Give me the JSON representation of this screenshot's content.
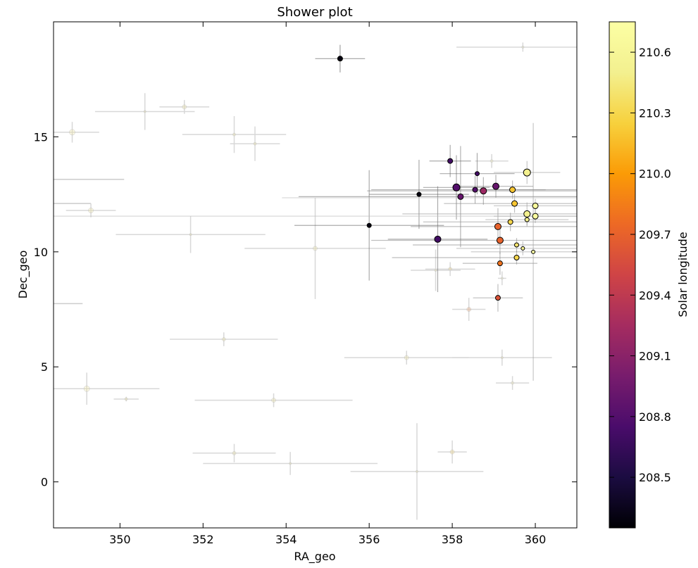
{
  "chart_data": {
    "type": "scatter",
    "title": "Shower plot",
    "xlabel": "RA_geo",
    "ylabel": "Dec_geo",
    "xlim": [
      348.4,
      361.0
    ],
    "ylim": [
      -2.0,
      20.0
    ],
    "x_ticks": [
      350,
      352,
      354,
      356,
      358,
      360
    ],
    "y_ticks": [
      0,
      5,
      10,
      15
    ],
    "x_tick_labels": [
      "350",
      "352",
      "354",
      "356",
      "358",
      "360"
    ],
    "y_tick_labels": [
      "0",
      "5",
      "10",
      "15"
    ],
    "grid": false,
    "marker_size_encodes": "point size",
    "colorbar": {
      "label": "Solar longitude",
      "colormap": "inferno",
      "range": [
        208.25,
        210.75
      ],
      "ticks": [
        208.5,
        208.8,
        209.1,
        209.4,
        209.7,
        210.0,
        210.3,
        210.6
      ],
      "tick_labels": [
        "208.5",
        "208.8",
        "209.1",
        "209.4",
        "209.7",
        "210.0",
        "210.3",
        "210.6"
      ]
    },
    "points": [
      {
        "x": 355.3,
        "y": 18.4,
        "c": 208.3,
        "s": 3.5
      },
      {
        "x": 357.2,
        "y": 12.5,
        "c": 208.3,
        "s": 3
      },
      {
        "x": 356.0,
        "y": 11.15,
        "c": 208.3,
        "s": 3
      },
      {
        "x": 357.95,
        "y": 13.95,
        "c": 208.7,
        "s": 3.5
      },
      {
        "x": 358.6,
        "y": 13.4,
        "c": 208.7,
        "s": 3
      },
      {
        "x": 357.65,
        "y": 10.55,
        "c": 208.7,
        "s": 4.5
      },
      {
        "x": 358.1,
        "y": 12.8,
        "c": 208.8,
        "s": 5
      },
      {
        "x": 358.55,
        "y": 12.7,
        "c": 208.8,
        "s": 3.5
      },
      {
        "x": 358.2,
        "y": 12.4,
        "c": 208.9,
        "s": 4
      },
      {
        "x": 359.05,
        "y": 12.85,
        "c": 208.9,
        "s": 4.5
      },
      {
        "x": 358.75,
        "y": 12.65,
        "c": 209.2,
        "s": 4.5
      },
      {
        "x": 359.1,
        "y": 8.0,
        "c": 209.6,
        "s": 3.5
      },
      {
        "x": 359.1,
        "y": 11.1,
        "c": 209.7,
        "s": 4.5
      },
      {
        "x": 359.15,
        "y": 10.5,
        "c": 209.7,
        "s": 4.5
      },
      {
        "x": 359.15,
        "y": 9.5,
        "c": 209.8,
        "s": 3.5
      },
      {
        "x": 359.45,
        "y": 12.7,
        "c": 210.2,
        "s": 4
      },
      {
        "x": 359.5,
        "y": 12.1,
        "c": 210.2,
        "s": 4
      },
      {
        "x": 359.4,
        "y": 11.3,
        "c": 210.3,
        "s": 3.5
      },
      {
        "x": 359.55,
        "y": 9.75,
        "c": 210.3,
        "s": 3.5
      },
      {
        "x": 359.55,
        "y": 10.3,
        "c": 210.4,
        "s": 3
      },
      {
        "x": 359.8,
        "y": 13.45,
        "c": 210.5,
        "s": 5
      },
      {
        "x": 359.8,
        "y": 11.65,
        "c": 210.5,
        "s": 4.5
      },
      {
        "x": 359.8,
        "y": 11.4,
        "c": 210.5,
        "s": 3
      },
      {
        "x": 359.7,
        "y": 10.15,
        "c": 210.5,
        "s": 2.5
      },
      {
        "x": 360.0,
        "y": 12.0,
        "c": 210.65,
        "s": 4
      },
      {
        "x": 360.0,
        "y": 11.55,
        "c": 210.7,
        "s": 4
      },
      {
        "x": 359.95,
        "y": 10.0,
        "c": 210.7,
        "s": 2.5
      }
    ],
    "error_bars": [
      {
        "x": 355.3,
        "y": 18.4,
        "xerr": 0.6,
        "yerr": 0.6,
        "shade": "#555"
      },
      {
        "x": 357.2,
        "y": 12.5,
        "xerr": 1.2,
        "yerr": 1.5,
        "shade": "#666"
      },
      {
        "x": 356.0,
        "y": 11.15,
        "xerr": 1.8,
        "yerr": 2.4,
        "shade": "#666"
      },
      {
        "x": 357.95,
        "y": 13.95,
        "xerr": 0.5,
        "yerr": 0.7,
        "shade": "#666"
      },
      {
        "x": 358.6,
        "y": 13.4,
        "xerr": 0.9,
        "yerr": 0.9,
        "shade": "#666"
      },
      {
        "x": 357.65,
        "y": 10.55,
        "xerr": 1.2,
        "yerr": 2.3,
        "shade": "#666"
      },
      {
        "x": 358.1,
        "y": 12.8,
        "xerr": 0.8,
        "yerr": 1.4,
        "shade": "#666"
      },
      {
        "x": 358.55,
        "y": 12.7,
        "xerr": 2.5,
        "yerr": 0.6,
        "shade": "#777"
      },
      {
        "x": 358.2,
        "y": 12.4,
        "xerr": 3.9,
        "yerr": 2.2,
        "shade": "#777"
      },
      {
        "x": 359.05,
        "y": 12.85,
        "xerr": 0.9,
        "yerr": 0.5,
        "shade": "#777"
      },
      {
        "x": 358.75,
        "y": 12.65,
        "xerr": 2.8,
        "yerr": 0.6,
        "shade": "#777"
      },
      {
        "x": 359.1,
        "y": 8.0,
        "xerr": 0.6,
        "yerr": 0.6,
        "shade": "#888"
      },
      {
        "x": 359.1,
        "y": 11.1,
        "xerr": 2.1,
        "yerr": 0.8,
        "shade": "#888"
      },
      {
        "x": 359.15,
        "y": 10.5,
        "xerr": 3.1,
        "yerr": 0.6,
        "shade": "#888"
      },
      {
        "x": 359.15,
        "y": 9.5,
        "xerr": 0.9,
        "yerr": 0.5,
        "shade": "#888"
      },
      {
        "x": 359.45,
        "y": 12.7,
        "xerr": 0.8,
        "yerr": 0.4,
        "shade": "#888"
      },
      {
        "x": 359.5,
        "y": 12.1,
        "xerr": 1.7,
        "yerr": 0.4,
        "shade": "#888"
      },
      {
        "x": 359.4,
        "y": 11.3,
        "xerr": 2.1,
        "yerr": 0.4,
        "shade": "#888"
      },
      {
        "x": 359.55,
        "y": 9.75,
        "xerr": 3.0,
        "yerr": 0.3,
        "shade": "#888"
      },
      {
        "x": 359.55,
        "y": 10.3,
        "xerr": 2.5,
        "yerr": 0.3,
        "shade": "#888"
      },
      {
        "x": 359.8,
        "y": 13.45,
        "xerr": 0.8,
        "yerr": 0.5,
        "shade": "#999"
      },
      {
        "x": 359.8,
        "y": 11.65,
        "xerr": 3.0,
        "yerr": 0.5,
        "shade": "#999"
      },
      {
        "x": 359.8,
        "y": 11.4,
        "xerr": 1.0,
        "yerr": 0.3,
        "shade": "#999"
      },
      {
        "x": 359.7,
        "y": 10.15,
        "xerr": 1.6,
        "yerr": 0.3,
        "shade": "#999"
      },
      {
        "x": 360.0,
        "y": 12.0,
        "xerr": 1.0,
        "yerr": 0.3,
        "shade": "#999"
      },
      {
        "x": 360.0,
        "y": 11.55,
        "xerr": 1.0,
        "yerr": 0.3,
        "shade": "#999"
      },
      {
        "x": 359.95,
        "y": 10.0,
        "xerr": 1.5,
        "yerr": 5.6,
        "shade": "#999"
      },
      {
        "x": 357.0,
        "y": 11.55,
        "xerr": 11.0,
        "yerr": 0.0,
        "shade": "#bbb"
      },
      {
        "x": 357.5,
        "y": 12.35,
        "xerr": 3.6,
        "yerr": 0.0,
        "shade": "#bbb"
      }
    ],
    "faint_points": [
      {
        "x": 348.85,
        "y": 15.2,
        "xerr": 0.65,
        "yerr": 0.45,
        "c": 210.4,
        "s": 4
      },
      {
        "x": 350.6,
        "y": 16.1,
        "xerr": 1.2,
        "yerr": 0.8,
        "c": 210.4,
        "s": 1.5
      },
      {
        "x": 351.55,
        "y": 16.3,
        "xerr": 0.6,
        "yerr": 0.3,
        "c": 210.4,
        "s": 3
      },
      {
        "x": 349.3,
        "y": 11.8,
        "xerr": 0.6,
        "yerr": 0.3,
        "c": 210.4,
        "s": 3.5
      },
      {
        "x": 351.7,
        "y": 10.75,
        "xerr": 1.8,
        "yerr": 0.8,
        "c": 210.4,
        "s": 1.5
      },
      {
        "x": 352.75,
        "y": 15.1,
        "xerr": 1.25,
        "yerr": 0.8,
        "c": 210.4,
        "s": 2
      },
      {
        "x": 353.25,
        "y": 14.7,
        "xerr": 0.6,
        "yerr": 0.75,
        "c": 210.4,
        "s": 2
      },
      {
        "x": 354.7,
        "y": 10.15,
        "xerr": 1.7,
        "yerr": 2.2,
        "c": 210.4,
        "s": 3
      },
      {
        "x": 352.5,
        "y": 6.2,
        "xerr": 1.3,
        "yerr": 0.3,
        "c": 210.4,
        "s": 2.5
      },
      {
        "x": 349.2,
        "y": 4.05,
        "xerr": 1.75,
        "yerr": 0.7,
        "c": 210.4,
        "s": 4
      },
      {
        "x": 350.15,
        "y": 3.6,
        "xerr": 0.3,
        "yerr": 0.1,
        "c": 210.4,
        "s": 2
      },
      {
        "x": 353.7,
        "y": 3.55,
        "xerr": 1.9,
        "yerr": 0.3,
        "c": 210.4,
        "s": 3
      },
      {
        "x": 352.75,
        "y": 1.25,
        "xerr": 1.0,
        "yerr": 0.4,
        "c": 210.4,
        "s": 2.5
      },
      {
        "x": 354.1,
        "y": 0.8,
        "xerr": 2.1,
        "yerr": 0.5,
        "c": 210.4,
        "s": 1.5
      },
      {
        "x": 356.9,
        "y": 5.4,
        "xerr": 1.5,
        "yerr": 0.3,
        "c": 210.4,
        "s": 3
      },
      {
        "x": 357.15,
        "y": 0.45,
        "xerr": 1.6,
        "yerr": 2.1,
        "c": 210.4,
        "s": 1.5
      },
      {
        "x": 358.0,
        "y": 1.3,
        "xerr": 0.35,
        "yerr": 0.5,
        "c": 210.2,
        "s": 3
      },
      {
        "x": 357.95,
        "y": 9.25,
        "xerr": 0.6,
        "yerr": 0.3,
        "c": 210.2,
        "s": 2.5
      },
      {
        "x": 358.4,
        "y": 7.5,
        "xerr": 0.4,
        "yerr": 0.5,
        "c": 209.8,
        "s": 3
      },
      {
        "x": 359.2,
        "y": 5.4,
        "xerr": 1.2,
        "yerr": 0.35,
        "c": 210.4,
        "s": 1.5
      },
      {
        "x": 359.45,
        "y": 4.3,
        "xerr": 0.4,
        "yerr": 0.3,
        "c": 210.5,
        "s": 2
      },
      {
        "x": 357.6,
        "y": 9.2,
        "xerr": 0.6,
        "yerr": 0.9,
        "c": 210.4,
        "s": 1.5
      },
      {
        "x": 359.7,
        "y": 18.9,
        "xerr": 1.6,
        "yerr": 0.2,
        "c": 210.5,
        "s": 1.5
      },
      {
        "x": 358.95,
        "y": 13.95,
        "xerr": 0.4,
        "yerr": 0.3,
        "c": 210.5,
        "s": 2
      },
      {
        "x": 359.2,
        "y": 8.85,
        "xerr": 0.1,
        "yerr": 0.3,
        "c": 210.6,
        "s": 1.5
      }
    ],
    "faint_segments": [
      {
        "x": [
          348.4,
          350.1
        ],
        "y": 13.15
      },
      {
        "x": [
          348.4,
          349.3
        ],
        "y": 12.1
      },
      {
        "x": [
          348.4,
          349.1
        ],
        "y": 7.75
      }
    ]
  }
}
